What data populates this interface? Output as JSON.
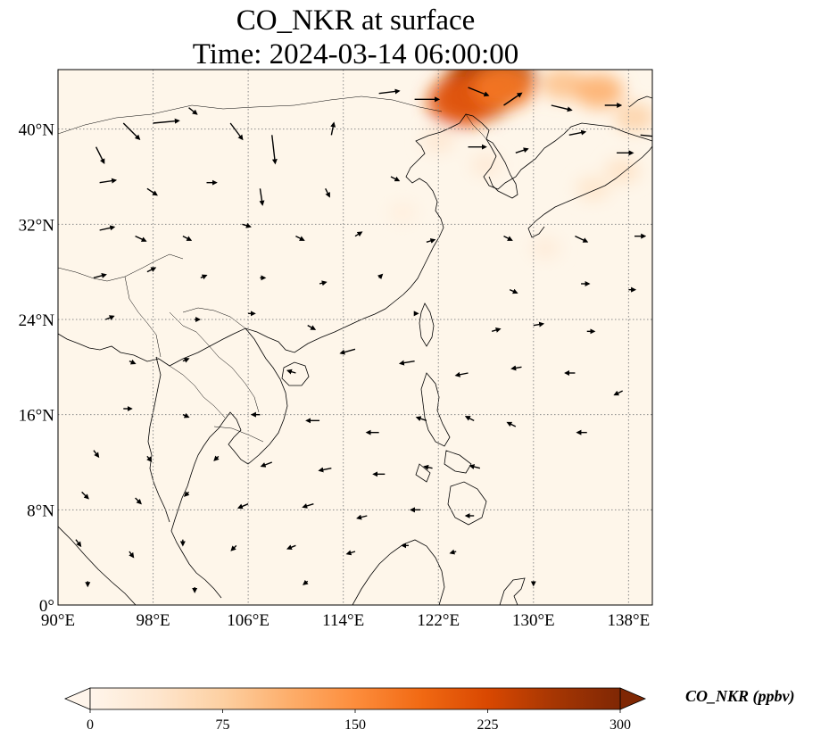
{
  "title": {
    "line1": "CO_NKR at surface",
    "line2": "Time: 2024-03-14 06:00:00"
  },
  "map": {
    "extent": {
      "lon_min": 90,
      "lon_max": 140,
      "lat_min": 0,
      "lat_max": 45
    },
    "lon_ticks": [
      {
        "value": 90,
        "label": "90°E"
      },
      {
        "value": 98,
        "label": "98°E"
      },
      {
        "value": 106,
        "label": "106°E"
      },
      {
        "value": 114,
        "label": "114°E"
      },
      {
        "value": 122,
        "label": "122°E"
      },
      {
        "value": 130,
        "label": "130°E"
      },
      {
        "value": 138,
        "label": "138°E"
      }
    ],
    "lat_ticks": [
      {
        "value": 0,
        "label": "0°"
      },
      {
        "value": 8,
        "label": "8°N"
      },
      {
        "value": 16,
        "label": "16°N"
      },
      {
        "value": 24,
        "label": "24°N"
      },
      {
        "value": 32,
        "label": "32°N"
      },
      {
        "value": 40,
        "label": "40°N"
      }
    ],
    "gridlines": true,
    "field_color_background": "#fef6ea",
    "field_plumes": [
      {
        "lon": 126.5,
        "lat": 44.2,
        "value": 290
      },
      {
        "lon": 125.2,
        "lat": 43.1,
        "value": 250
      },
      {
        "lon": 124.0,
        "lat": 42.3,
        "value": 210
      },
      {
        "lon": 127.5,
        "lat": 43.6,
        "value": 170
      },
      {
        "lon": 132.5,
        "lat": 43.8,
        "value": 90
      },
      {
        "lon": 135.5,
        "lat": 43.2,
        "value": 110
      },
      {
        "lon": 138.5,
        "lat": 41.0,
        "value": 70
      },
      {
        "lon": 122.0,
        "lat": 39.0,
        "value": 35
      },
      {
        "lon": 126.0,
        "lat": 37.0,
        "value": 30
      },
      {
        "lon": 135.0,
        "lat": 35.0,
        "value": 40
      },
      {
        "lon": 119.0,
        "lat": 33.0,
        "value": 18
      },
      {
        "lon": 131.0,
        "lat": 30.0,
        "value": 25
      },
      {
        "lon": 137.5,
        "lat": 36.5,
        "value": 45
      }
    ],
    "wind_vectors": [
      {
        "lon": 93.2,
        "lat": 38.5,
        "u": 1.0,
        "v": -2.0
      },
      {
        "lon": 95.5,
        "lat": 40.5,
        "u": 2.0,
        "v": -2.0
      },
      {
        "lon": 98.0,
        "lat": 40.5,
        "u": 3.2,
        "v": 0.3
      },
      {
        "lon": 101.0,
        "lat": 41.8,
        "u": 1.0,
        "v": -0.8
      },
      {
        "lon": 104.5,
        "lat": 40.5,
        "u": 1.5,
        "v": -2.0
      },
      {
        "lon": 108.0,
        "lat": 39.5,
        "u": 0.4,
        "v": -3.5
      },
      {
        "lon": 113.0,
        "lat": 39.5,
        "u": 0.3,
        "v": 1.5
      },
      {
        "lon": 117.0,
        "lat": 43.0,
        "u": 2.5,
        "v": 0.3
      },
      {
        "lon": 120.0,
        "lat": 42.5,
        "u": 3.0,
        "v": 0.0
      },
      {
        "lon": 124.5,
        "lat": 43.5,
        "u": 2.5,
        "v": -1.0
      },
      {
        "lon": 127.5,
        "lat": 42.0,
        "u": 2.2,
        "v": 1.5
      },
      {
        "lon": 131.5,
        "lat": 42.0,
        "u": 2.5,
        "v": -0.6
      },
      {
        "lon": 136.0,
        "lat": 42.0,
        "u": 2.0,
        "v": 0.0
      },
      {
        "lon": 139.0,
        "lat": 39.5,
        "u": 2.0,
        "v": -0.2
      },
      {
        "lon": 93.5,
        "lat": 35.5,
        "u": 2.0,
        "v": 0.3
      },
      {
        "lon": 97.5,
        "lat": 35.0,
        "u": 1.2,
        "v": -0.8
      },
      {
        "lon": 102.5,
        "lat": 35.5,
        "u": 1.2,
        "v": 0.0
      },
      {
        "lon": 107.0,
        "lat": 35.0,
        "u": 0.3,
        "v": -2.0
      },
      {
        "lon": 112.5,
        "lat": 35.0,
        "u": 0.5,
        "v": -1.0
      },
      {
        "lon": 118.0,
        "lat": 36.0,
        "u": 1.0,
        "v": -0.5
      },
      {
        "lon": 124.5,
        "lat": 38.5,
        "u": 2.2,
        "v": 0.0
      },
      {
        "lon": 128.5,
        "lat": 38.0,
        "u": 1.5,
        "v": 0.5
      },
      {
        "lon": 133.0,
        "lat": 39.5,
        "u": 2.0,
        "v": 0.4
      },
      {
        "lon": 137.0,
        "lat": 38.0,
        "u": 2.0,
        "v": 0.0
      },
      {
        "lon": 93.5,
        "lat": 31.5,
        "u": 1.8,
        "v": 0.4
      },
      {
        "lon": 96.5,
        "lat": 31.0,
        "u": 1.3,
        "v": -0.6
      },
      {
        "lon": 100.5,
        "lat": 31.0,
        "u": 1.0,
        "v": -0.5
      },
      {
        "lon": 105.5,
        "lat": 32.0,
        "u": 1.0,
        "v": -0.3
      },
      {
        "lon": 110.0,
        "lat": 31.0,
        "u": 1.0,
        "v": -0.5
      },
      {
        "lon": 115.0,
        "lat": 31.0,
        "u": 0.8,
        "v": 0.5
      },
      {
        "lon": 121.0,
        "lat": 30.5,
        "u": 1.0,
        "v": 0.3
      },
      {
        "lon": 127.5,
        "lat": 31.0,
        "u": 1.0,
        "v": -0.5
      },
      {
        "lon": 133.5,
        "lat": 31.0,
        "u": 1.5,
        "v": -0.7
      },
      {
        "lon": 138.5,
        "lat": 31.0,
        "u": 1.3,
        "v": 0.0
      },
      {
        "lon": 93.0,
        "lat": 27.5,
        "u": 1.5,
        "v": 0.4
      },
      {
        "lon": 97.5,
        "lat": 28.0,
        "u": 1.0,
        "v": 0.5
      },
      {
        "lon": 102.0,
        "lat": 27.5,
        "u": 0.7,
        "v": 0.3
      },
      {
        "lon": 107.0,
        "lat": 27.5,
        "u": 0.6,
        "v": 0.0
      },
      {
        "lon": 112.0,
        "lat": 27.0,
        "u": 0.8,
        "v": 0.2
      },
      {
        "lon": 117.0,
        "lat": 27.5,
        "u": 0.4,
        "v": 0.4
      },
      {
        "lon": 128.0,
        "lat": 26.5,
        "u": 0.9,
        "v": -0.4
      },
      {
        "lon": 134.0,
        "lat": 27.0,
        "u": 1.0,
        "v": 0.0
      },
      {
        "lon": 138.0,
        "lat": 26.5,
        "u": 0.8,
        "v": 0.0
      },
      {
        "lon": 94.0,
        "lat": 24.0,
        "u": 1.0,
        "v": 0.4
      },
      {
        "lon": 101.5,
        "lat": 24.0,
        "u": 0.6,
        "v": 0.0
      },
      {
        "lon": 106.0,
        "lat": 24.5,
        "u": 0.8,
        "v": 0.0
      },
      {
        "lon": 111.0,
        "lat": 23.5,
        "u": 0.9,
        "v": -0.5
      },
      {
        "lon": 120.0,
        "lat": 24.5,
        "u": 0.4,
        "v": 0.0
      },
      {
        "lon": 126.5,
        "lat": 23.0,
        "u": 1.0,
        "v": 0.3
      },
      {
        "lon": 130.0,
        "lat": 23.5,
        "u": 1.2,
        "v": 0.2
      },
      {
        "lon": 134.5,
        "lat": 23.0,
        "u": 0.9,
        "v": 0.0
      },
      {
        "lon": 96.0,
        "lat": 20.5,
        "u": 0.7,
        "v": -0.3
      },
      {
        "lon": 100.5,
        "lat": 20.5,
        "u": 0.7,
        "v": 0.3
      },
      {
        "lon": 110.0,
        "lat": 19.5,
        "u": -1.0,
        "v": 0.3
      },
      {
        "lon": 115.0,
        "lat": 21.5,
        "u": -1.8,
        "v": -0.5
      },
      {
        "lon": 120.0,
        "lat": 20.5,
        "u": -1.8,
        "v": -0.3
      },
      {
        "lon": 124.5,
        "lat": 19.5,
        "u": -1.5,
        "v": -0.3
      },
      {
        "lon": 129.0,
        "lat": 20.0,
        "u": -1.2,
        "v": -0.2
      },
      {
        "lon": 133.5,
        "lat": 19.5,
        "u": -1.2,
        "v": 0.0
      },
      {
        "lon": 137.5,
        "lat": 18.0,
        "u": -1.0,
        "v": -0.5
      },
      {
        "lon": 95.5,
        "lat": 16.5,
        "u": 1.0,
        "v": 0.0
      },
      {
        "lon": 100.5,
        "lat": 16.0,
        "u": 0.7,
        "v": -0.3
      },
      {
        "lon": 107.0,
        "lat": 16.0,
        "u": -1.0,
        "v": 0.0
      },
      {
        "lon": 112.0,
        "lat": 15.5,
        "u": -1.6,
        "v": 0.0
      },
      {
        "lon": 117.0,
        "lat": 14.5,
        "u": -1.5,
        "v": 0.0
      },
      {
        "lon": 121.0,
        "lat": 15.5,
        "u": -1.2,
        "v": 0.4
      },
      {
        "lon": 125.0,
        "lat": 15.5,
        "u": -1.0,
        "v": 0.5
      },
      {
        "lon": 128.5,
        "lat": 15.0,
        "u": -1.0,
        "v": 0.5
      },
      {
        "lon": 134.5,
        "lat": 14.5,
        "u": -1.2,
        "v": 0.0
      },
      {
        "lon": 93.0,
        "lat": 13.0,
        "u": 0.6,
        "v": -0.8
      },
      {
        "lon": 97.5,
        "lat": 12.5,
        "u": 0.5,
        "v": -0.6
      },
      {
        "lon": 103.5,
        "lat": 12.5,
        "u": -0.5,
        "v": -0.5
      },
      {
        "lon": 108.0,
        "lat": 12.0,
        "u": -1.3,
        "v": -0.5
      },
      {
        "lon": 113.0,
        "lat": 11.5,
        "u": -1.5,
        "v": -0.3
      },
      {
        "lon": 117.5,
        "lat": 11.0,
        "u": -1.4,
        "v": 0.0
      },
      {
        "lon": 121.5,
        "lat": 11.5,
        "u": -1.0,
        "v": 0.2
      },
      {
        "lon": 125.5,
        "lat": 11.5,
        "u": -1.2,
        "v": 0.3
      },
      {
        "lon": 92.0,
        "lat": 9.5,
        "u": 0.8,
        "v": -0.8
      },
      {
        "lon": 96.5,
        "lat": 9.0,
        "u": 0.7,
        "v": -0.7
      },
      {
        "lon": 101.0,
        "lat": 9.5,
        "u": -0.5,
        "v": -0.5
      },
      {
        "lon": 106.0,
        "lat": 8.5,
        "u": -1.2,
        "v": -0.5
      },
      {
        "lon": 111.5,
        "lat": 8.5,
        "u": -1.3,
        "v": -0.4
      },
      {
        "lon": 116.0,
        "lat": 7.5,
        "u": -1.2,
        "v": -0.3
      },
      {
        "lon": 120.5,
        "lat": 8.0,
        "u": -1.2,
        "v": 0.0
      },
      {
        "lon": 125.0,
        "lat": 7.5,
        "u": -1.0,
        "v": 0.0
      },
      {
        "lon": 91.5,
        "lat": 5.5,
        "u": 0.6,
        "v": -0.8
      },
      {
        "lon": 96.0,
        "lat": 4.5,
        "u": 0.5,
        "v": -0.7
      },
      {
        "lon": 100.5,
        "lat": 5.5,
        "u": 0.0,
        "v": -0.7
      },
      {
        "lon": 105.0,
        "lat": 5.0,
        "u": -0.6,
        "v": -0.6
      },
      {
        "lon": 110.0,
        "lat": 5.0,
        "u": -1.0,
        "v": -0.4
      },
      {
        "lon": 115.0,
        "lat": 4.5,
        "u": -1.0,
        "v": -0.3
      },
      {
        "lon": 119.5,
        "lat": 5.0,
        "u": -0.8,
        "v": 0.0
      },
      {
        "lon": 123.5,
        "lat": 4.5,
        "u": -0.7,
        "v": -0.2
      },
      {
        "lon": 92.5,
        "lat": 2.0,
        "u": 0.0,
        "v": -0.6
      },
      {
        "lon": 101.5,
        "lat": 1.5,
        "u": 0.0,
        "v": -0.6
      },
      {
        "lon": 111.0,
        "lat": 2.0,
        "u": -0.5,
        "v": -0.4
      },
      {
        "lon": 130.0,
        "lat": 2.0,
        "u": 0.0,
        "v": -0.5
      }
    ]
  },
  "colorbar": {
    "label": "CO_NKR (ppbv)",
    "min": 0,
    "max": 300,
    "extend": "both",
    "ticks": [
      {
        "value": 0,
        "label": "0"
      },
      {
        "value": 75,
        "label": "75"
      },
      {
        "value": 150,
        "label": "150"
      },
      {
        "value": 225,
        "label": "225"
      },
      {
        "value": 300,
        "label": "300"
      }
    ],
    "colors": [
      "#fff5eb",
      "#fee6ce",
      "#fdd0a2",
      "#fdae6b",
      "#fd8d3c",
      "#f16913",
      "#d94801",
      "#a63603",
      "#7f2704"
    ],
    "colormap": "Oranges"
  }
}
